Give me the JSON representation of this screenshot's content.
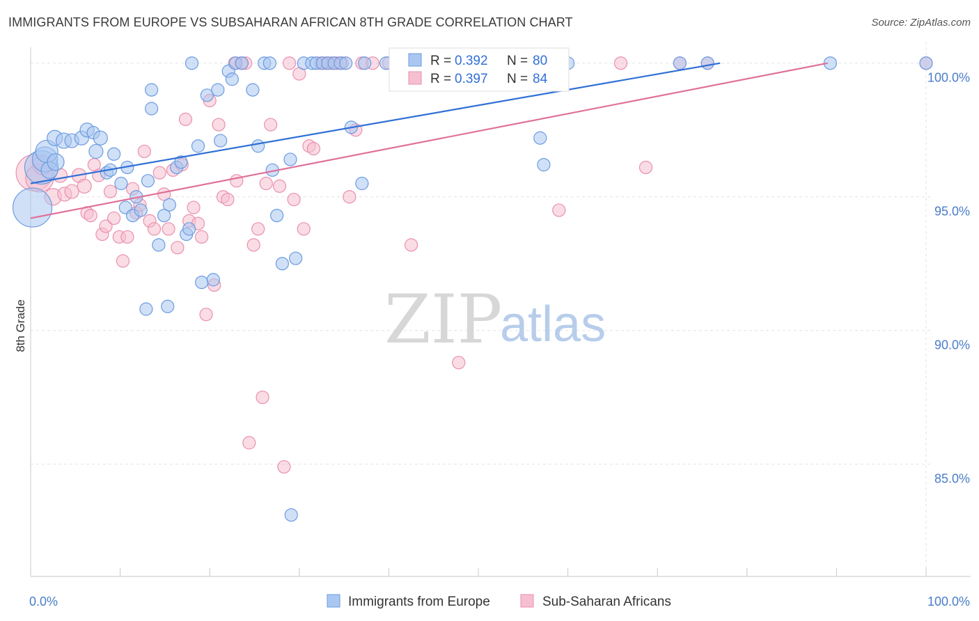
{
  "title": "IMMIGRANTS FROM EUROPE VS SUBSAHARAN AFRICAN 8TH GRADE CORRELATION CHART",
  "source": "Source: ZipAtlas.com",
  "watermark": {
    "zip": "ZIP",
    "atlas": "atlas"
  },
  "colors": {
    "blue_fill": "#a9c7f0",
    "blue_stroke": "#6a9be0",
    "blue_line": "#2f6fd6",
    "pink_fill": "#f6bfd0",
    "pink_stroke": "#ea8fae",
    "pink_line": "#e0709a",
    "grid": "#e2e2e2",
    "axis_text": "#4a7cc9"
  },
  "chart_data": {
    "type": "scatter",
    "title": "IMMIGRANTS FROM EUROPE VS SUBSAHARAN AFRICAN 8TH GRADE CORRELATION CHART",
    "xlabel": "",
    "ylabel": "8th Grade",
    "xlim": [
      0,
      100
    ],
    "ylim": [
      80.8,
      100.8
    ],
    "x_tick_labels": [
      "0.0%",
      "100.0%"
    ],
    "y_ticks": [
      85,
      90,
      95,
      100
    ],
    "y_tick_labels": [
      "85.0%",
      "90.0%",
      "95.0%",
      "100.0%"
    ],
    "grid": true,
    "legend_top": [
      {
        "r_label": "R = ",
        "r_value": "0.392",
        "n_label": "N = ",
        "n_value": "80"
      },
      {
        "r_label": "R = ",
        "r_value": "0.397",
        "n_label": "N = ",
        "n_value": "84"
      }
    ],
    "series": [
      {
        "name": "Immigrants from Europe",
        "color": "blue",
        "trend": [
          [
            0,
            95.5
          ],
          [
            77,
            100.0
          ]
        ],
        "points": [
          [
            0.2,
            94.6,
            28
          ],
          [
            1.2,
            96.1,
            24
          ],
          [
            1.6,
            96.4,
            18
          ],
          [
            1.8,
            96.7,
            16
          ],
          [
            2.1,
            96.0,
            12
          ],
          [
            2.8,
            96.3,
            12
          ],
          [
            2.7,
            97.2,
            11
          ],
          [
            3.7,
            97.1,
            11
          ],
          [
            4.6,
            97.1,
            10
          ],
          [
            5.7,
            97.2,
            10
          ],
          [
            6.3,
            97.5,
            10
          ],
          [
            7.0,
            97.4,
            9
          ],
          [
            7.8,
            97.2,
            10
          ],
          [
            7.3,
            96.7,
            10
          ],
          [
            8.5,
            95.9,
            9
          ],
          [
            8.9,
            96.0,
            9
          ],
          [
            9.3,
            96.6,
            9
          ],
          [
            10.1,
            95.5,
            9
          ],
          [
            10.6,
            94.6,
            9
          ],
          [
            10.8,
            96.1,
            9
          ],
          [
            11.4,
            94.3,
            9
          ],
          [
            11.8,
            95.0,
            9
          ],
          [
            12.3,
            94.5,
            9
          ],
          [
            13.1,
            95.6,
            9
          ],
          [
            13.5,
            98.3,
            9
          ],
          [
            14.3,
            93.2,
            9
          ],
          [
            14.9,
            94.3,
            9
          ],
          [
            15.5,
            94.7,
            9
          ],
          [
            16.3,
            96.1,
            9
          ],
          [
            16.8,
            96.3,
            9
          ],
          [
            17.4,
            93.6,
            9
          ],
          [
            17.7,
            93.8,
            9
          ],
          [
            18.7,
            96.9,
            9
          ],
          [
            19.1,
            91.8,
            9
          ],
          [
            20.4,
            91.9,
            9
          ],
          [
            19.7,
            98.8,
            9
          ],
          [
            20.9,
            99.0,
            9
          ],
          [
            21.2,
            97.1,
            9
          ],
          [
            22.1,
            99.7,
            9
          ],
          [
            22.5,
            99.4,
            9
          ],
          [
            22.9,
            100.0,
            9
          ],
          [
            23.6,
            100.0,
            9
          ],
          [
            24.8,
            99.0,
            9
          ],
          [
            25.4,
            96.9,
            9
          ],
          [
            26.1,
            100.0,
            9
          ],
          [
            26.7,
            100.0,
            9
          ],
          [
            27.0,
            96.0,
            9
          ],
          [
            27.5,
            94.3,
            9
          ],
          [
            28.1,
            92.5,
            9
          ],
          [
            29.0,
            96.4,
            9
          ],
          [
            29.6,
            92.7,
            9
          ],
          [
            30.5,
            100.0,
            9
          ],
          [
            31.4,
            100.0,
            9
          ],
          [
            31.9,
            100.0,
            9
          ],
          [
            32.6,
            100.0,
            9
          ],
          [
            33.2,
            100.0,
            9
          ],
          [
            33.9,
            100.0,
            9
          ],
          [
            34.6,
            100.0,
            9
          ],
          [
            35.8,
            97.6,
            9
          ],
          [
            35.2,
            100.0,
            9
          ],
          [
            37.3,
            100.0,
            9
          ],
          [
            37.0,
            95.5,
            9
          ],
          [
            12.9,
            90.8,
            9
          ],
          [
            15.3,
            90.9,
            9
          ],
          [
            29.1,
            83.1,
            9
          ],
          [
            39.7,
            100.0,
            9
          ],
          [
            40.8,
            100.0,
            9
          ],
          [
            42.0,
            100.0,
            9
          ],
          [
            44.4,
            100.0,
            9
          ],
          [
            45.1,
            100.0,
            9
          ],
          [
            46.3,
            100.0,
            9
          ],
          [
            56.9,
            97.2,
            9
          ],
          [
            57.3,
            96.2,
            9
          ],
          [
            60.0,
            100.0,
            9
          ],
          [
            72.5,
            100.0,
            9
          ],
          [
            75.6,
            100.0,
            9
          ],
          [
            89.3,
            100.0,
            9
          ],
          [
            100.0,
            100.0,
            9
          ],
          [
            18.0,
            100.0,
            9
          ],
          [
            13.5,
            99.0,
            9
          ]
        ]
      },
      {
        "name": "Sub-Saharan Africans",
        "color": "pink",
        "trend": [
          [
            0,
            94.2
          ],
          [
            89,
            100.0
          ]
        ],
        "points": [
          [
            0.4,
            95.9,
            26
          ],
          [
            1.0,
            95.7,
            20
          ],
          [
            1.3,
            96.2,
            14
          ],
          [
            2.5,
            95.0,
            12
          ],
          [
            3.3,
            95.8,
            10
          ],
          [
            3.8,
            95.1,
            10
          ],
          [
            4.6,
            95.2,
            10
          ],
          [
            5.4,
            95.8,
            10
          ],
          [
            6.0,
            95.4,
            10
          ],
          [
            6.3,
            94.4,
            9
          ],
          [
            6.7,
            94.3,
            9
          ],
          [
            7.1,
            96.2,
            9
          ],
          [
            7.6,
            95.8,
            9
          ],
          [
            8.0,
            93.6,
            9
          ],
          [
            8.4,
            93.9,
            9
          ],
          [
            8.9,
            95.2,
            9
          ],
          [
            9.3,
            94.2,
            9
          ],
          [
            9.9,
            93.5,
            9
          ],
          [
            10.3,
            92.6,
            9
          ],
          [
            10.8,
            93.5,
            9
          ],
          [
            11.4,
            95.3,
            9
          ],
          [
            11.8,
            94.4,
            9
          ],
          [
            12.2,
            94.7,
            9
          ],
          [
            12.7,
            96.7,
            9
          ],
          [
            13.3,
            94.1,
            9
          ],
          [
            13.8,
            93.8,
            9
          ],
          [
            14.4,
            95.9,
            9
          ],
          [
            14.9,
            95.1,
            9
          ],
          [
            15.4,
            93.8,
            9
          ],
          [
            15.9,
            96.0,
            9
          ],
          [
            16.4,
            93.1,
            9
          ],
          [
            16.9,
            96.2,
            9
          ],
          [
            17.3,
            97.9,
            9
          ],
          [
            17.7,
            94.1,
            9
          ],
          [
            18.2,
            94.6,
            9
          ],
          [
            18.7,
            94.0,
            9
          ],
          [
            19.1,
            93.5,
            9
          ],
          [
            19.6,
            90.6,
            9
          ],
          [
            20.0,
            98.6,
            9
          ],
          [
            20.5,
            91.7,
            9
          ],
          [
            21.0,
            97.7,
            9
          ],
          [
            21.5,
            95.0,
            9
          ],
          [
            22.0,
            94.9,
            9
          ],
          [
            22.8,
            100.0,
            9
          ],
          [
            23.0,
            95.6,
            9
          ],
          [
            23.5,
            100.0,
            9
          ],
          [
            24.0,
            100.0,
            9
          ],
          [
            24.4,
            85.8,
            9
          ],
          [
            24.9,
            93.2,
            9
          ],
          [
            25.4,
            93.8,
            9
          ],
          [
            25.9,
            87.5,
            9
          ],
          [
            26.3,
            95.5,
            9
          ],
          [
            26.8,
            97.7,
            9
          ],
          [
            27.8,
            95.4,
            9
          ],
          [
            28.3,
            84.9,
            9
          ],
          [
            28.9,
            100.0,
            9
          ],
          [
            29.4,
            94.9,
            9
          ],
          [
            30.0,
            99.6,
            9
          ],
          [
            30.5,
            93.8,
            9
          ],
          [
            31.1,
            96.9,
            9
          ],
          [
            31.6,
            96.8,
            9
          ],
          [
            32.4,
            100.0,
            9
          ],
          [
            33.0,
            100.0,
            9
          ],
          [
            33.6,
            100.0,
            9
          ],
          [
            34.2,
            100.0,
            9
          ],
          [
            34.8,
            100.0,
            9
          ],
          [
            35.6,
            95.0,
            9
          ],
          [
            36.3,
            97.5,
            9
          ],
          [
            37.0,
            100.0,
            9
          ],
          [
            38.2,
            100.0,
            9
          ],
          [
            40.0,
            100.0,
            9
          ],
          [
            41.2,
            100.0,
            9
          ],
          [
            42.5,
            93.2,
            9
          ],
          [
            44.0,
            100.0,
            9
          ],
          [
            47.1,
            100.0,
            9
          ],
          [
            47.8,
            88.8,
            9
          ],
          [
            49.8,
            100.0,
            9
          ],
          [
            53.2,
            100.0,
            9
          ],
          [
            59.0,
            94.5,
            9
          ],
          [
            65.9,
            100.0,
            9
          ],
          [
            68.7,
            96.1,
            9
          ],
          [
            72.5,
            100.0,
            9
          ],
          [
            75.6,
            100.0,
            9
          ],
          [
            100.0,
            100.0,
            9
          ]
        ]
      }
    ]
  }
}
